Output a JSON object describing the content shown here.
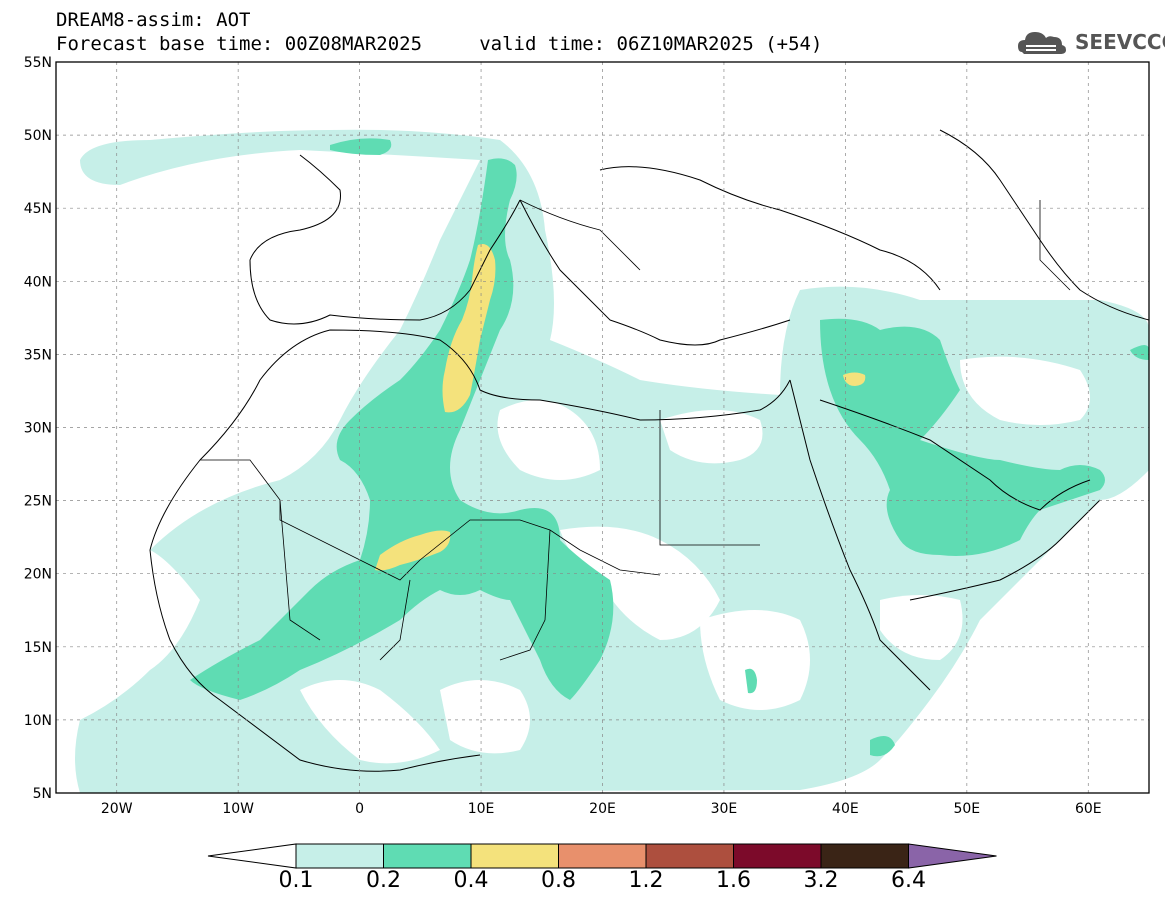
{
  "header": {
    "line1": "DREAM8-assim: AOT",
    "line2": "Forecast base time: 00Z08MAR2025     valid time: 06Z10MAR2025 (+54)"
  },
  "logo": {
    "text": "SEEVCCC",
    "icon": "cloud-icon"
  },
  "map": {
    "lon_range": [
      -25,
      65
    ],
    "lat_range": [
      5,
      55
    ],
    "lat_ticks": [
      "5N",
      "10N",
      "15N",
      "20N",
      "25N",
      "30N",
      "35N",
      "40N",
      "45N",
      "50N",
      "55N"
    ],
    "lon_ticks": [
      "20W",
      "10W",
      "0",
      "10E",
      "20E",
      "30E",
      "40E",
      "50E",
      "60E"
    ],
    "grid": true
  },
  "colorbar": {
    "labels": [
      "0.1",
      "0.2",
      "0.4",
      "0.8",
      "1.2",
      "1.6",
      "3.2",
      "6.4"
    ],
    "colors": [
      "#ffffff",
      "#c6efe8",
      "#5fdcb3",
      "#f4e27c",
      "#e8906c",
      "#ad4f3e",
      "#7c0a2a",
      "#3a2416",
      "#8a64a8"
    ]
  },
  "chart_data": {
    "type": "heatmap",
    "variable": "AOT",
    "levels": [
      0.1,
      0.2,
      0.4,
      0.8,
      1.2,
      1.6,
      3.2,
      6.4
    ],
    "features": [
      {
        "name": "band-0.1",
        "level": 0.1
      },
      {
        "name": "band-0.2",
        "level": 0.2
      },
      {
        "name": "band-0.4",
        "level": 0.4
      }
    ]
  }
}
